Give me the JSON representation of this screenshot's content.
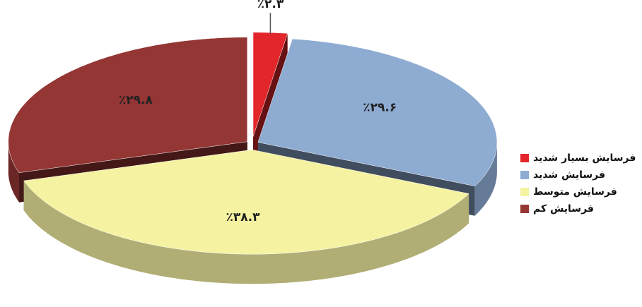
{
  "chart_data": {
    "type": "pie3d",
    "categories": [
      "فرسایش بسیار شدید",
      "فرسایش شدید",
      "فرسایش متوسط",
      "فرسایش کم"
    ],
    "values": [
      2.3,
      29.6,
      38.3,
      29.8
    ],
    "value_labels": [
      "٪۲.۳",
      "٪۲۹.۶",
      "٪۳۸.۳",
      "٪۲۹.۸"
    ],
    "colors": [
      "#e3262b",
      "#8eabd2",
      "#f5f2a2",
      "#943634"
    ],
    "legend": "right"
  }
}
